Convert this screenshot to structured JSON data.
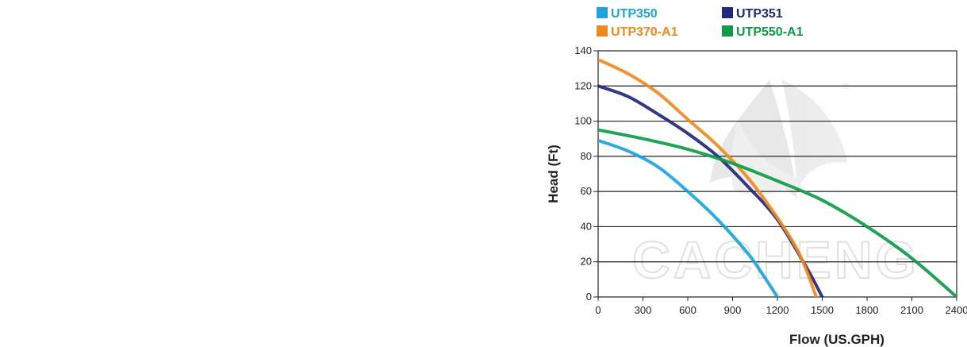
{
  "chart_data": {
    "type": "line",
    "title": "",
    "xlabel": "Flow (US.GPH)",
    "ylabel": "Head (Ft)",
    "xlim": [
      0,
      2400
    ],
    "ylim": [
      0,
      140
    ],
    "x_ticks": [
      0,
      300,
      600,
      900,
      1200,
      1500,
      1800,
      2100,
      2400
    ],
    "y_ticks": [
      0,
      20,
      40,
      60,
      80,
      100,
      120,
      140
    ],
    "grid": "horizontal",
    "legend_position": "top",
    "watermark_text": "CACHENG",
    "series": [
      {
        "name": "UTP350",
        "color": "#1ca3e0",
        "x": [
          0,
          200,
          400,
          600,
          800,
          1000,
          1100,
          1200
        ],
        "y": [
          89,
          83,
          74,
          60,
          44,
          25,
          13,
          0
        ]
      },
      {
        "name": "UTP351",
        "color": "#22287a",
        "x": [
          0,
          200,
          400,
          600,
          800,
          1000,
          1200,
          1400,
          1500
        ],
        "y": [
          120,
          114,
          104,
          93,
          80,
          63,
          44,
          16,
          0
        ]
      },
      {
        "name": "UTP370-A1",
        "color": "#ef8a22",
        "x": [
          0,
          200,
          400,
          600,
          800,
          1000,
          1200,
          1350,
          1460
        ],
        "y": [
          135,
          127,
          116,
          101,
          86,
          68,
          45,
          24,
          0
        ]
      },
      {
        "name": "UTP550-A1",
        "color": "#0e9a47",
        "x": [
          0,
          300,
          600,
          900,
          1200,
          1500,
          1800,
          2100,
          2400
        ],
        "y": [
          95,
          90,
          84,
          76,
          66,
          55,
          40,
          22,
          0
        ]
      }
    ]
  }
}
